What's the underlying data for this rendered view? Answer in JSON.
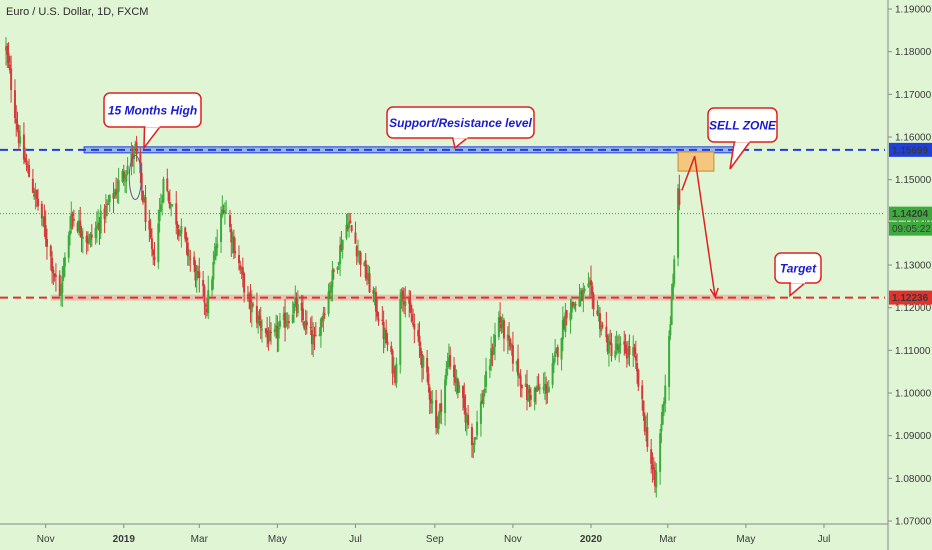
{
  "chart_title": "Euro / U.S. Dollar, 1D, FXCM",
  "colors": {
    "background": "#dff5d4",
    "up": "#3cab3c",
    "down": "#d43a3a",
    "resistance": "#1f3fdc",
    "support": "#e3322e",
    "sell_zone_fill": "#f5c77e",
    "callout_border": "#e02020"
  },
  "chart_data": {
    "type": "candlestick",
    "title": "Euro / U.S. Dollar, 1D, FXCM",
    "ylim": [
      1.07,
      1.19
    ],
    "y_ticks": [
      "1.19000",
      "1.18000",
      "1.17000",
      "1.16000",
      "1.15000",
      "1.14000",
      "1.13000",
      "1.12000",
      "1.11000",
      "1.10000",
      "1.09000",
      "1.08000",
      "1.07000"
    ],
    "x_ticks": [
      "Nov",
      "2019",
      "Mar",
      "May",
      "Jul",
      "Sep",
      "Nov",
      "2020",
      "Mar",
      "May",
      "Jul"
    ],
    "price_path": [
      {
        "date": "2018-10-01",
        "price": 1.1805
      },
      {
        "date": "2018-10-12",
        "price": 1.158
      },
      {
        "date": "2018-10-29",
        "price": 1.141
      },
      {
        "date": "2018-11-12",
        "price": 1.1223
      },
      {
        "date": "2018-11-21",
        "price": 1.142
      },
      {
        "date": "2018-12-05",
        "price": 1.1355
      },
      {
        "date": "2018-12-20",
        "price": 1.144
      },
      {
        "date": "2019-01-10",
        "price": 1.157
      },
      {
        "date": "2019-01-24",
        "price": 1.1305
      },
      {
        "date": "2019-02-01",
        "price": 1.1495
      },
      {
        "date": "2019-02-20",
        "price": 1.133
      },
      {
        "date": "2019-03-07",
        "price": 1.1205
      },
      {
        "date": "2019-03-20",
        "price": 1.1445
      },
      {
        "date": "2019-04-08",
        "price": 1.1215
      },
      {
        "date": "2019-04-26",
        "price": 1.112
      },
      {
        "date": "2019-05-15",
        "price": 1.1205
      },
      {
        "date": "2019-05-30",
        "price": 1.1115
      },
      {
        "date": "2019-06-25",
        "price": 1.1405
      },
      {
        "date": "2019-07-15",
        "price": 1.1225
      },
      {
        "date": "2019-08-01",
        "price": 1.1045
      },
      {
        "date": "2019-08-06",
        "price": 1.125
      },
      {
        "date": "2019-08-20",
        "price": 1.1105
      },
      {
        "date": "2019-09-03",
        "price": 1.0925
      },
      {
        "date": "2019-09-12",
        "price": 1.1085
      },
      {
        "date": "2019-10-01",
        "price": 1.0885
      },
      {
        "date": "2019-10-21",
        "price": 1.1175
      },
      {
        "date": "2019-11-12",
        "price": 1.0995
      },
      {
        "date": "2019-11-29",
        "price": 1.1015
      },
      {
        "date": "2019-12-13",
        "price": 1.1195
      },
      {
        "date": "2019-12-31",
        "price": 1.124
      },
      {
        "date": "2020-01-15",
        "price": 1.1105
      },
      {
        "date": "2020-02-03",
        "price": 1.1095
      },
      {
        "date": "2020-02-20",
        "price": 1.078
      },
      {
        "date": "2020-02-28",
        "price": 1.1025
      },
      {
        "date": "2020-03-05",
        "price": 1.1245
      },
      {
        "date": "2020-03-09",
        "price": 1.1495
      },
      {
        "date": "2020-03-10",
        "price": 1.142
      }
    ],
    "horizontal_levels": [
      {
        "label": "1.15699",
        "value": 1.15699,
        "style": "dashed",
        "color": "#1f3fdc"
      },
      {
        "label": "1.12236",
        "value": 1.12236,
        "style": "dashed",
        "color": "#e3322e"
      }
    ],
    "current_price": {
      "value": 1.14204,
      "label": "1.14204",
      "countdown": "09:05:22"
    },
    "annotations": {
      "high_callout": "15 Months High",
      "sr_callout": "Support/Resistance level",
      "sell_callout": "SELL ZONE",
      "target_callout": "Target"
    },
    "sell_zone": {
      "from_date": "2020-03-09",
      "to_date": "2020-04-06",
      "low": 1.152,
      "high": 1.1565
    },
    "projection": [
      {
        "date": "2020-03-12",
        "price": 1.1475
      },
      {
        "date": "2020-03-22",
        "price": 1.1555
      },
      {
        "date": "2020-04-07",
        "price": 1.1225
      }
    ]
  }
}
